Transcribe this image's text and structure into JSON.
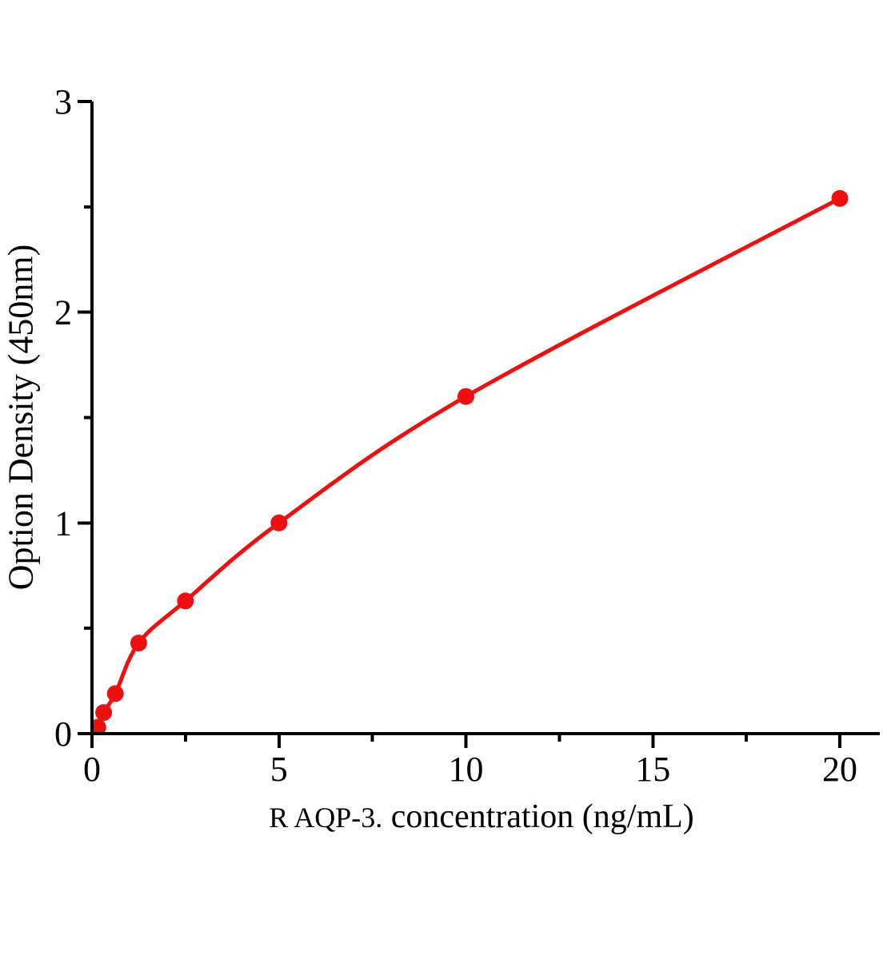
{
  "page": {
    "background": "#ffffff"
  },
  "chart_data": {
    "type": "scatter",
    "title": "",
    "xlabel_prefix": "R AQP-3.",
    "xlabel_main": "concentration（ng/mL）",
    "ylabel": "Option Density（450nm）",
    "x": [
      0.156,
      0.312,
      0.625,
      1.25,
      2.5,
      5,
      10,
      20
    ],
    "y": [
      0.03,
      0.1,
      0.19,
      0.43,
      0.63,
      1.0,
      1.6,
      2.54
    ],
    "curve_start": [
      0,
      0
    ],
    "xlim": [
      0,
      21
    ],
    "ylim": [
      0,
      3
    ],
    "x_major_ticks": [
      0,
      5,
      10,
      15,
      20
    ],
    "x_minor_ticks": [
      2.5,
      7.5,
      12.5,
      17.5
    ],
    "y_major_ticks": [
      0,
      1,
      2,
      3
    ],
    "y_minor_ticks": [
      0.5,
      1.5,
      2.5
    ],
    "grid": false,
    "legend": null,
    "line_color": "#ee1010",
    "marker_color": "#ee1010",
    "axis_color": "#000000"
  }
}
